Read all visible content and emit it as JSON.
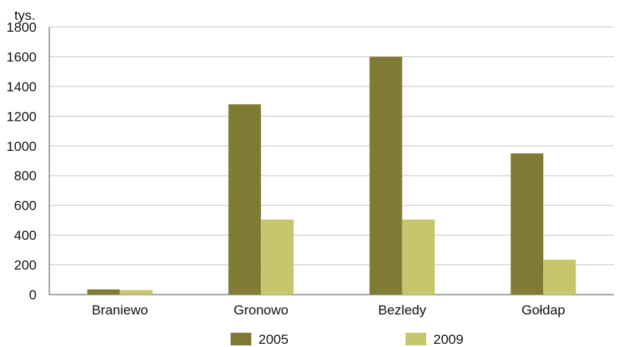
{
  "chart_data": {
    "type": "bar",
    "title": "",
    "ylabel": "tys.",
    "xlabel": "",
    "ylim": [
      0,
      1800
    ],
    "yticks": [
      0,
      200,
      400,
      600,
      800,
      1000,
      1200,
      1400,
      1600,
      1800
    ],
    "grid": true,
    "legend_position": "bottom",
    "categories": [
      "Braniewo",
      "Gronowo",
      "Bezledy",
      "Gołdap"
    ],
    "series": [
      {
        "name": "2005",
        "color": "#7f7b35",
        "values": [
          35,
          1280,
          1600,
          950
        ]
      },
      {
        "name": "2009",
        "color": "#c6c66e",
        "values": [
          30,
          505,
          505,
          235
        ]
      }
    ]
  }
}
